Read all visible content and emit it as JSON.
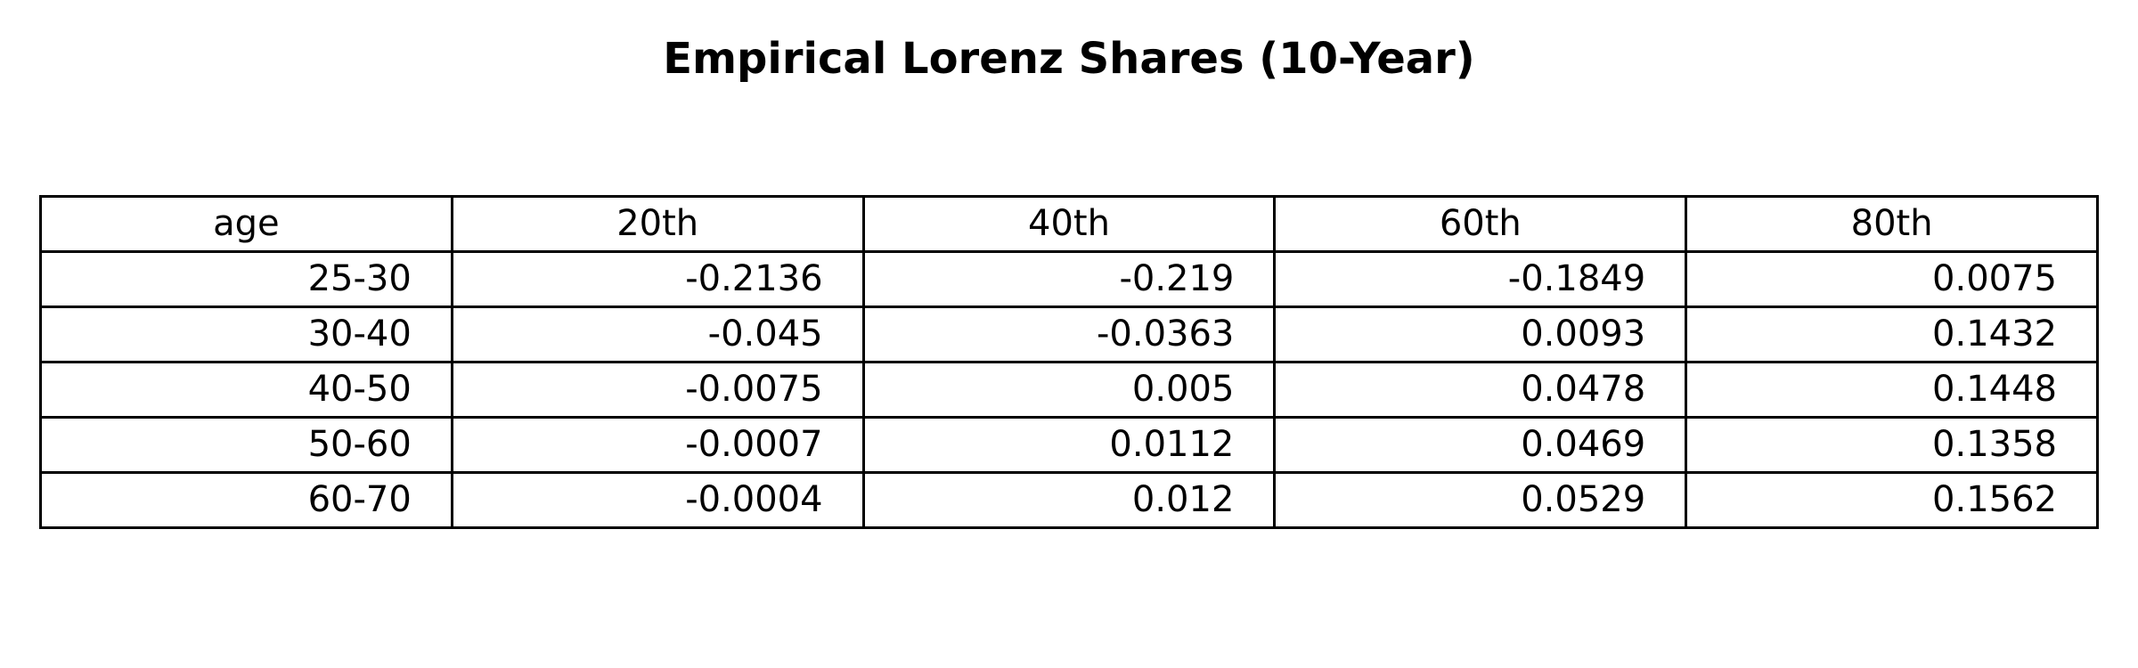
{
  "chart_data": {
    "type": "table",
    "title": "Empirical Lorenz Shares (10-Year)",
    "columns": [
      "age",
      "20th",
      "40th",
      "60th",
      "80th"
    ],
    "rows": [
      [
        "25-30",
        "-0.2136",
        "-0.219",
        "-0.1849",
        "0.0075"
      ],
      [
        "30-40",
        "-0.045",
        "-0.0363",
        "0.0093",
        "0.1432"
      ],
      [
        "40-50",
        "-0.0075",
        "0.005",
        "0.0478",
        "0.1448"
      ],
      [
        "50-60",
        "-0.0007",
        "0.0112",
        "0.0469",
        "0.1358"
      ],
      [
        "60-70",
        "-0.0004",
        "0.012",
        "0.0529",
        "0.1562"
      ]
    ]
  },
  "colors": {
    "text": "#000000",
    "grid": "#000000",
    "background": "#ffffff"
  }
}
